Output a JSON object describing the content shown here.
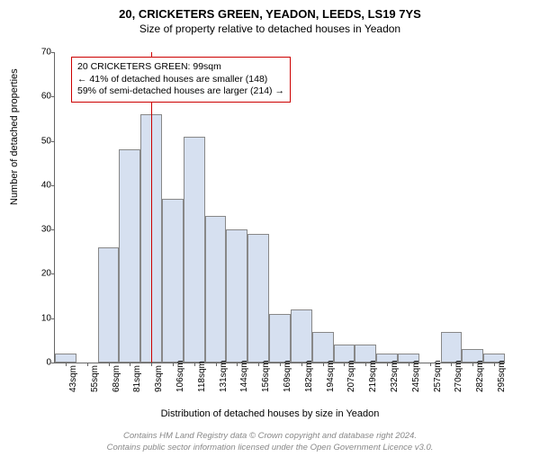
{
  "title_line1": "20, CRICKETERS GREEN, YEADON, LEEDS, LS19 7YS",
  "title_line2": "Size of property relative to detached houses in Yeadon",
  "y_axis_label": "Number of detached properties",
  "x_axis_label": "Distribution of detached houses by size in Yeadon",
  "chart": {
    "type": "histogram",
    "ylim": [
      0,
      70
    ],
    "ytick_step": 10,
    "yticks": [
      0,
      10,
      20,
      30,
      40,
      50,
      60,
      70
    ],
    "x_categories": [
      "43sqm",
      "55sqm",
      "68sqm",
      "81sqm",
      "93sqm",
      "106sqm",
      "118sqm",
      "131sqm",
      "144sqm",
      "156sqm",
      "169sqm",
      "182sqm",
      "194sqm",
      "207sqm",
      "219sqm",
      "232sqm",
      "245sqm",
      "257sqm",
      "270sqm",
      "282sqm",
      "295sqm"
    ],
    "values": [
      2,
      0,
      26,
      48,
      56,
      37,
      51,
      33,
      30,
      29,
      11,
      12,
      7,
      4,
      4,
      2,
      2,
      0,
      7,
      3,
      2
    ],
    "bar_fill": "#d6e0f0",
    "bar_border": "#888888",
    "background_color": "#ffffff",
    "axis_color": "#666666"
  },
  "reference_line": {
    "index": 4.5,
    "color": "#cc0000"
  },
  "annotation": {
    "border_color": "#cc0000",
    "line1": "20 CRICKETERS GREEN: 99sqm",
    "line2": "← 41% of detached houses are smaller (148)",
    "line3": "59% of semi-detached houses are larger (214) →"
  },
  "footer_line1": "Contains HM Land Registry data © Crown copyright and database right 2024.",
  "footer_line2": "Contains public sector information licensed under the Open Government Licence v3.0."
}
